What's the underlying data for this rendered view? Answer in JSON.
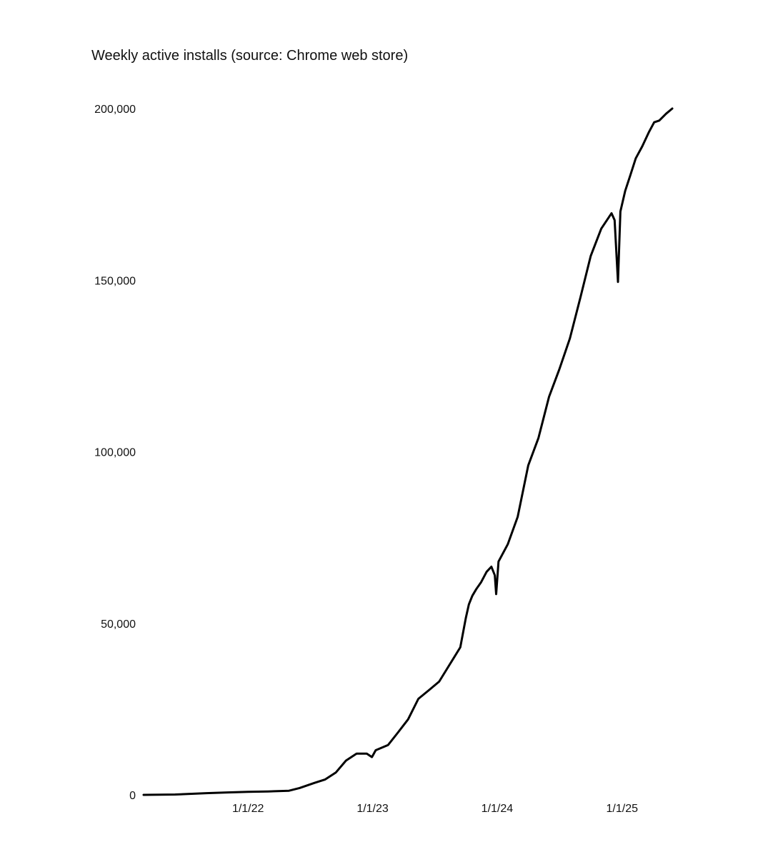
{
  "chart_data": {
    "type": "line",
    "title": "Weekly active installs (source: Chrome web store)",
    "xlabel": "",
    "ylabel": "",
    "grid": false,
    "legend": "none",
    "line_color": "#000000",
    "ylim": [
      0,
      200000
    ],
    "xlim": [
      "2021-03-01",
      "2025-05-28"
    ],
    "y_ticks": [
      {
        "value": 0,
        "label": "0"
      },
      {
        "value": 50000,
        "label": "50,000"
      },
      {
        "value": 100000,
        "label": "100,000"
      },
      {
        "value": 150000,
        "label": "150,000"
      },
      {
        "value": 200000,
        "label": "200,000"
      }
    ],
    "x_ticks": [
      {
        "value": "2022-01-01",
        "label": "1/1/22"
      },
      {
        "value": "2023-01-01",
        "label": "1/1/23"
      },
      {
        "value": "2024-01-01",
        "label": "1/1/24"
      },
      {
        "value": "2025-01-01",
        "label": "1/1/25"
      }
    ],
    "series": [
      {
        "name": "",
        "x": [
          "2021-03-01",
          "2021-06-01",
          "2021-09-01",
          "2021-11-01",
          "2022-01-01",
          "2022-03-01",
          "2022-05-01",
          "2022-06-01",
          "2022-07-15",
          "2022-08-15",
          "2022-09-15",
          "2022-10-15",
          "2022-11-15",
          "2022-12-15",
          "2022-12-30",
          "2023-01-10",
          "2023-02-15",
          "2023-03-15",
          "2023-04-15",
          "2023-05-15",
          "2023-06-15",
          "2023-07-15",
          "2023-08-15",
          "2023-09-15",
          "2023-10-01",
          "2023-10-10",
          "2023-10-20",
          "2023-11-01",
          "2023-11-15",
          "2023-12-01",
          "2023-12-15",
          "2023-12-25",
          "2023-12-29",
          "2024-01-05",
          "2024-02-01",
          "2024-03-01",
          "2024-04-01",
          "2024-05-01",
          "2024-06-01",
          "2024-07-01",
          "2024-08-01",
          "2024-09-01",
          "2024-10-01",
          "2024-11-01",
          "2024-12-01",
          "2024-12-10",
          "2024-12-20",
          "2024-12-27",
          "2025-01-10",
          "2025-01-25",
          "2025-02-10",
          "2025-03-01",
          "2025-03-20",
          "2025-04-05",
          "2025-04-20",
          "2025-05-10",
          "2025-05-28"
        ],
        "y": [
          0,
          100,
          500,
          700,
          900,
          1000,
          1200,
          2000,
          3500,
          4500,
          6500,
          10000,
          12000,
          12000,
          11000,
          13000,
          14500,
          18000,
          22000,
          28000,
          30500,
          33000,
          38000,
          43000,
          51500,
          55500,
          58000,
          60000,
          62000,
          65000,
          66500,
          64000,
          58500,
          68000,
          73000,
          81000,
          96000,
          104000,
          116000,
          124000,
          133000,
          145000,
          157000,
          165000,
          169500,
          167500,
          149500,
          170000,
          176000,
          180500,
          185500,
          189000,
          193000,
          196000,
          196500,
          198500,
          200000
        ]
      }
    ]
  }
}
